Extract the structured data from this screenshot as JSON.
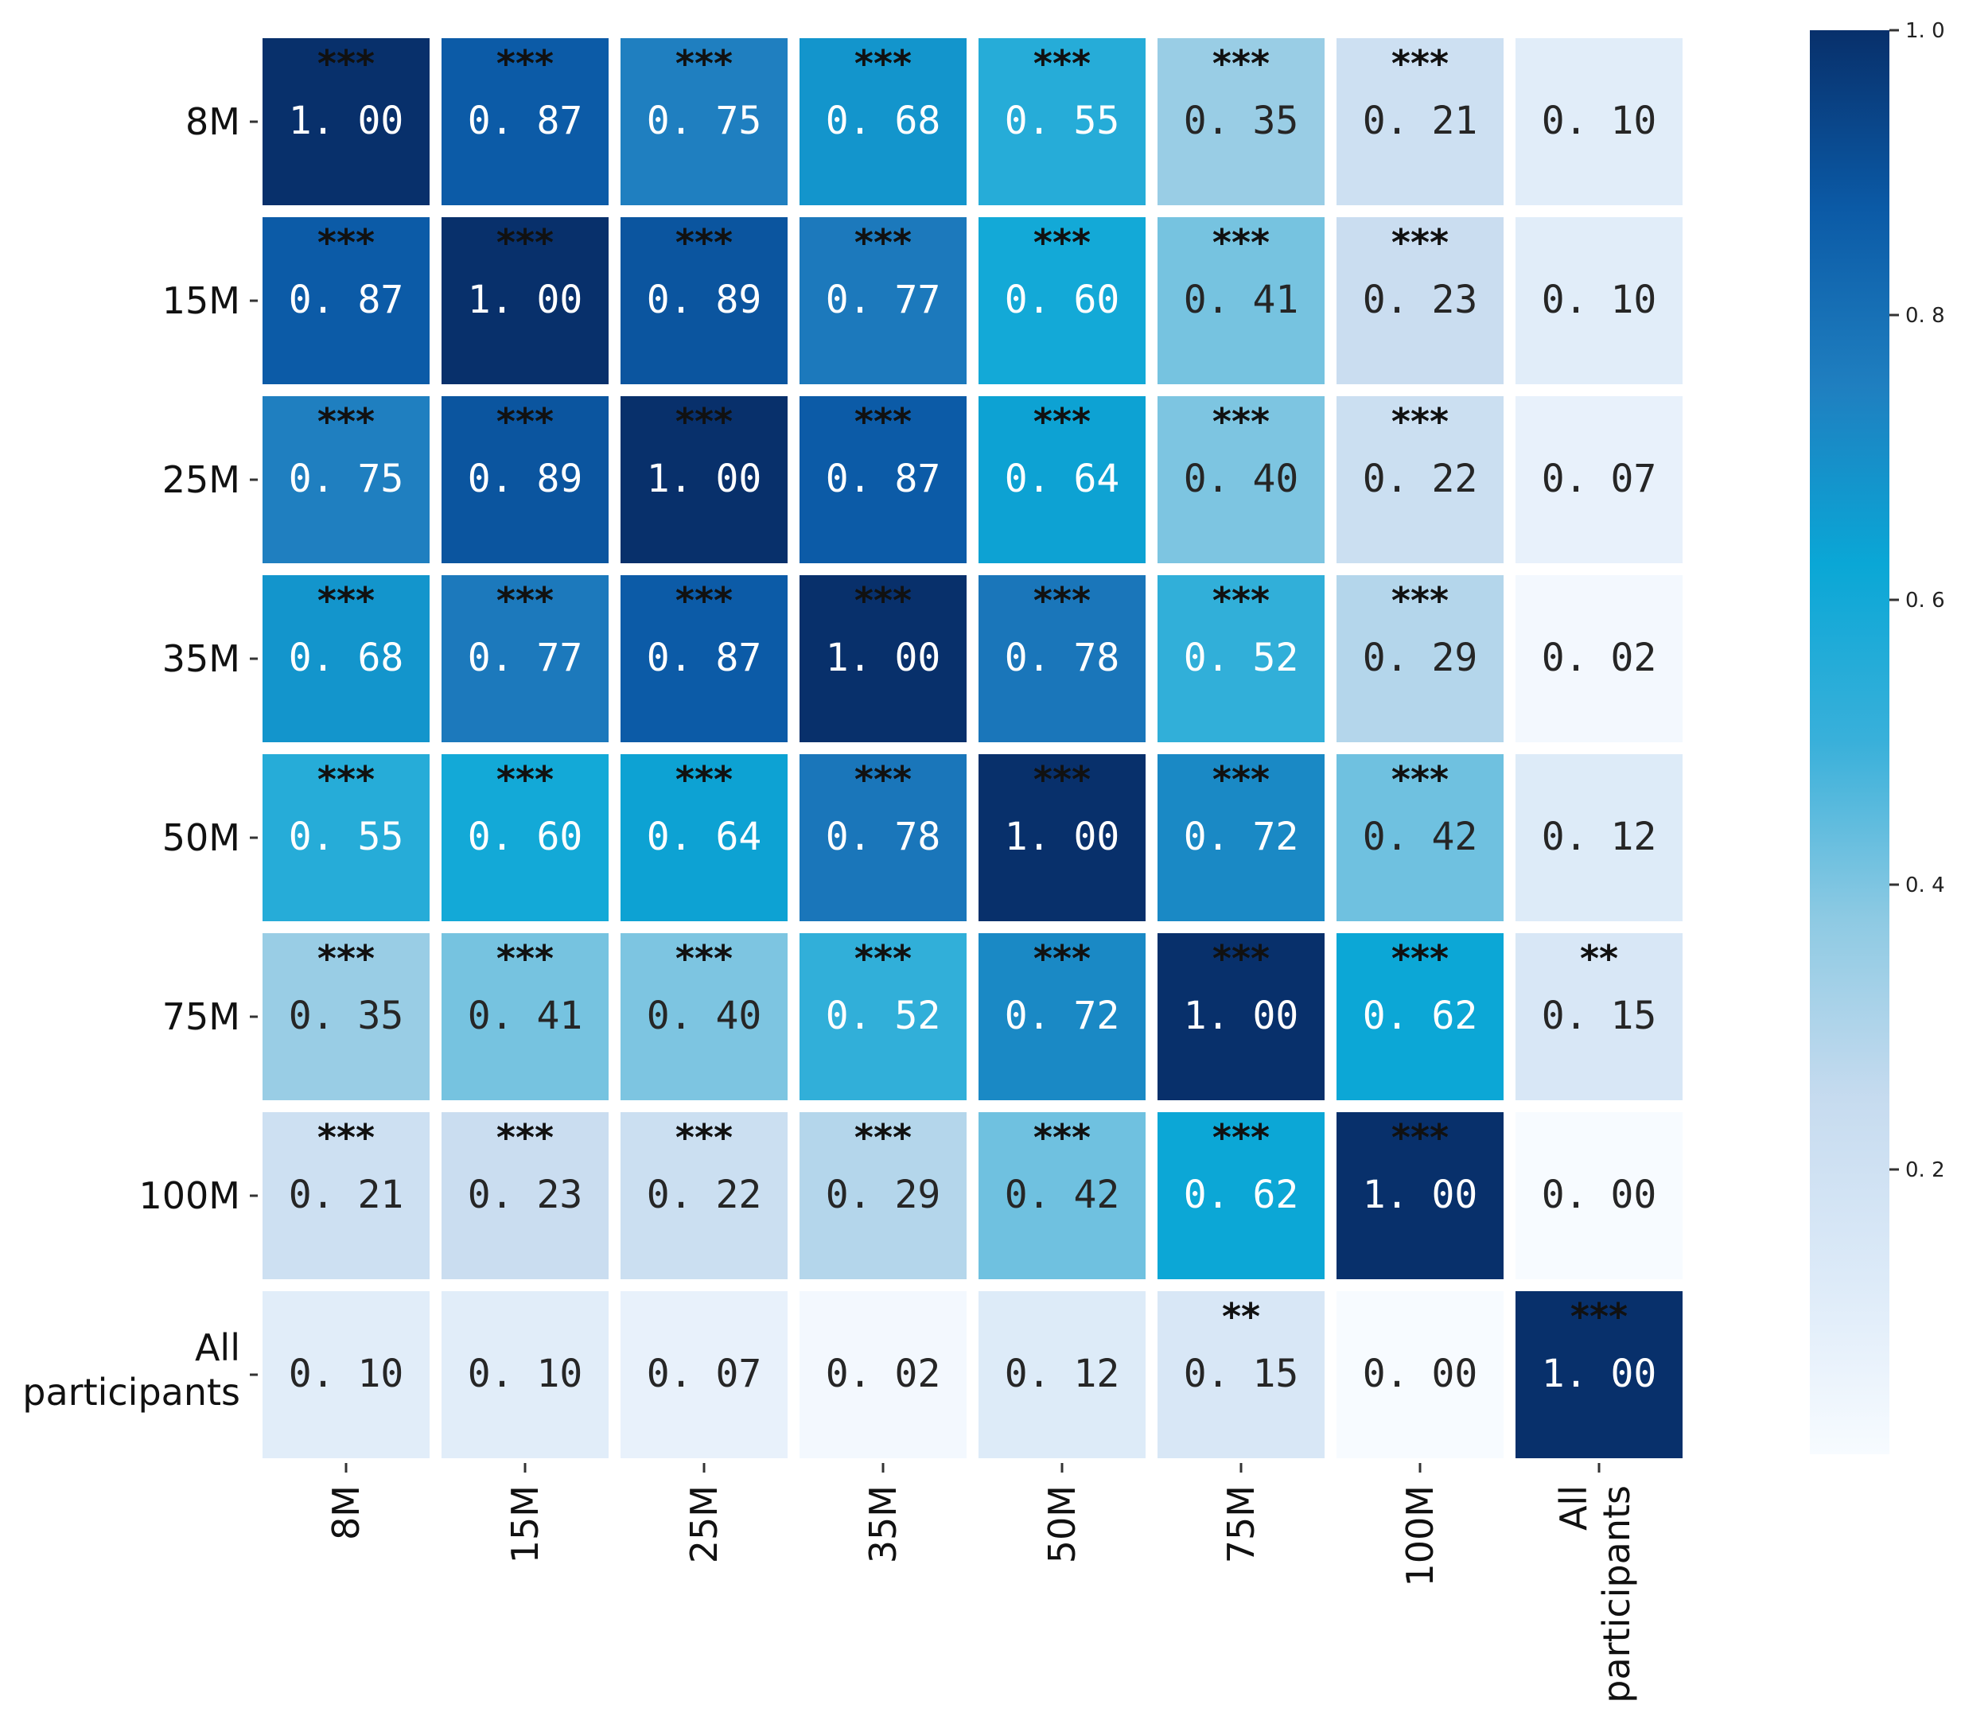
{
  "chart_data": {
    "type": "heatmap",
    "title": "",
    "row_labels": [
      "8M",
      "15M",
      "25M",
      "35M",
      "50M",
      "75M",
      "100M",
      "All participants"
    ],
    "col_labels": [
      "8M",
      "15M",
      "25M",
      "35M",
      "50M",
      "75M",
      "100M",
      "All participants"
    ],
    "values": [
      [
        1.0,
        0.87,
        0.75,
        0.68,
        0.55,
        0.35,
        0.21,
        0.1
      ],
      [
        0.87,
        1.0,
        0.89,
        0.77,
        0.6,
        0.41,
        0.23,
        0.1
      ],
      [
        0.75,
        0.89,
        1.0,
        0.87,
        0.64,
        0.4,
        0.22,
        0.07
      ],
      [
        0.68,
        0.77,
        0.87,
        1.0,
        0.78,
        0.52,
        0.29,
        0.02
      ],
      [
        0.55,
        0.6,
        0.64,
        0.78,
        1.0,
        0.72,
        0.42,
        0.12
      ],
      [
        0.35,
        0.41,
        0.4,
        0.52,
        0.72,
        1.0,
        0.62,
        0.15
      ],
      [
        0.21,
        0.23,
        0.22,
        0.29,
        0.42,
        0.62,
        1.0,
        0.0
      ],
      [
        0.1,
        0.1,
        0.07,
        0.02,
        0.12,
        0.15,
        0.0,
        1.0
      ]
    ],
    "value_labels": [
      [
        "1. 00",
        "0. 87",
        "0. 75",
        "0. 68",
        "0. 55",
        "0. 35",
        "0. 21",
        "0. 10"
      ],
      [
        "0. 87",
        "1. 00",
        "0. 89",
        "0. 77",
        "0. 60",
        "0. 41",
        "0. 23",
        "0. 10"
      ],
      [
        "0. 75",
        "0. 89",
        "1. 00",
        "0. 87",
        "0. 64",
        "0. 40",
        "0. 22",
        "0. 07"
      ],
      [
        "0. 68",
        "0. 77",
        "0. 87",
        "1. 00",
        "0. 78",
        "0. 52",
        "0. 29",
        "0. 02"
      ],
      [
        "0. 55",
        "0. 60",
        "0. 64",
        "0. 78",
        "1. 00",
        "0. 72",
        "0. 42",
        "0. 12"
      ],
      [
        "0. 35",
        "0. 41",
        "0. 40",
        "0. 52",
        "0. 72",
        "1. 00",
        "0. 62",
        "0. 15"
      ],
      [
        "0. 21",
        "0. 23",
        "0. 22",
        "0. 29",
        "0. 42",
        "0. 62",
        "1. 00",
        "0. 00"
      ],
      [
        "0. 10",
        "0. 10",
        "0. 07",
        "0. 02",
        "0. 12",
        "0. 15",
        "0. 00",
        "1. 00"
      ]
    ],
    "significance": [
      [
        "***",
        "***",
        "***",
        "***",
        "***",
        "***",
        "***",
        ""
      ],
      [
        "***",
        "***",
        "***",
        "***",
        "***",
        "***",
        "***",
        ""
      ],
      [
        "***",
        "***",
        "***",
        "***",
        "***",
        "***",
        "***",
        ""
      ],
      [
        "***",
        "***",
        "***",
        "***",
        "***",
        "***",
        "***",
        ""
      ],
      [
        "***",
        "***",
        "***",
        "***",
        "***",
        "***",
        "***",
        ""
      ],
      [
        "***",
        "***",
        "***",
        "***",
        "***",
        "***",
        "***",
        "**"
      ],
      [
        "***",
        "***",
        "***",
        "***",
        "***",
        "***",
        "***",
        ""
      ],
      [
        "",
        "",
        "",
        "",
        "",
        "**",
        "",
        "***"
      ]
    ],
    "colormap": "Blues",
    "colormap_stops": [
      "#f7fbff",
      "#dceaf8",
      "#c6dbef",
      "#8ecae3",
      "#39b0da",
      "#0aa7d6",
      "#1f7fc0",
      "#0b5aa6",
      "#08306b"
    ],
    "vmin": 0.0,
    "vmax": 1.0,
    "colorbar": {
      "ticks": [
        0.2,
        0.4,
        0.6,
        0.8,
        1.0
      ],
      "tick_labels": [
        "0. 2",
        "0. 4",
        "0. 6",
        "0. 8",
        "1. 0"
      ]
    }
  }
}
